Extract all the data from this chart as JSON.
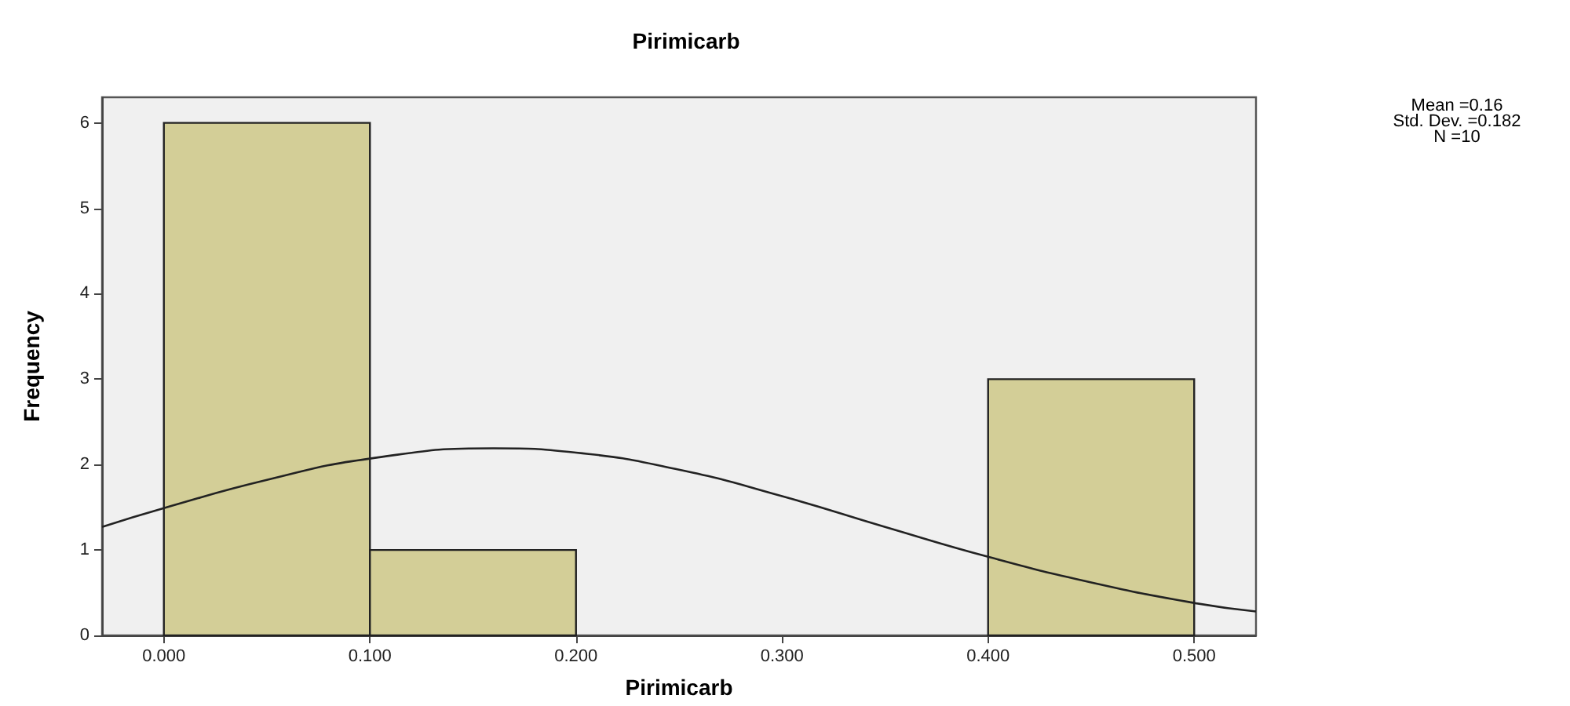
{
  "chart_data": {
    "type": "histogram",
    "title": "Pirimicarb",
    "xlabel": "Pirimicarb",
    "ylabel": "Frequency",
    "bins": [
      0,
      0.1,
      0.2,
      0.3,
      0.4,
      0.5
    ],
    "series": [
      {
        "color": "#d3ce97",
        "values": [
          6,
          1,
          0,
          0,
          3
        ]
      },
      {
        "type": "line",
        "color": "#222222",
        "marker": "none",
        "line_style": "solid",
        "x": [
          -0.03,
          0,
          0.05,
          0.1,
          0.16,
          0.2,
          0.25,
          0.3,
          0.35,
          0.4,
          0.45,
          0.5,
          0.53
        ],
        "values": [
          1.27,
          1.49,
          1.82,
          2.07,
          2.19,
          2.14,
          1.94,
          1.63,
          1.27,
          0.92,
          0.62,
          0.38,
          0.28
        ]
      }
    ],
    "xlim": [
      -0.03,
      0.53
    ],
    "xticks": [
      {
        "value": 0,
        "label": "0.000"
      },
      {
        "value": 0.1,
        "label": "0.100"
      },
      {
        "value": 0.2,
        "label": "0.200"
      },
      {
        "value": 0.3,
        "label": "0.300"
      },
      {
        "value": 0.4,
        "label": "0.400"
      },
      {
        "value": 0.5,
        "label": "0.500"
      }
    ],
    "ylim": [
      0,
      6.3
    ],
    "yticks": [
      0,
      1,
      2,
      3,
      4,
      5,
      6
    ],
    "grid": false,
    "annotations": [
      "Mean =0.16",
      "Std. Dev. =0.182",
      "N =10"
    ]
  }
}
